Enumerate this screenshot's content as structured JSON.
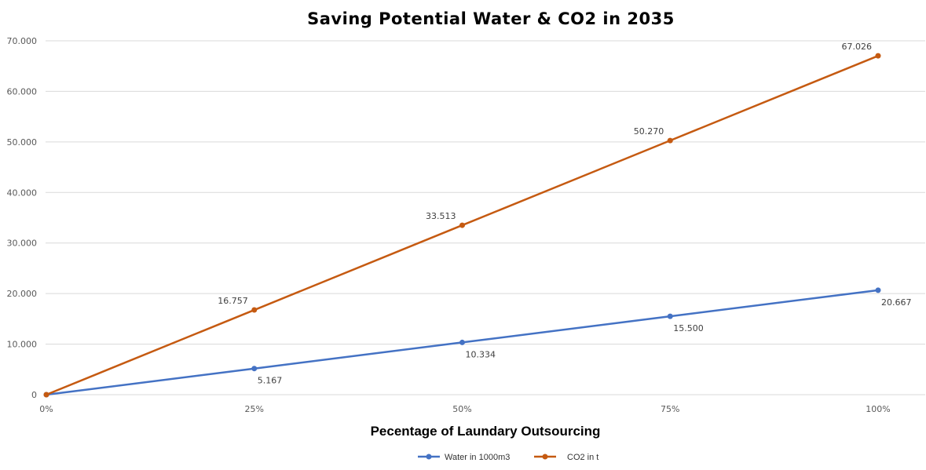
{
  "chart_data": {
    "type": "line",
    "title": "Saving Potential Water & CO2 in 2035",
    "xlabel": "Pecentage of Laundary Outsourcing",
    "ylabel": "",
    "categories": [
      "0%",
      "25%",
      "50%",
      "75%",
      "100%"
    ],
    "x": [
      0,
      25,
      50,
      75,
      100
    ],
    "ylim": [
      0,
      70000
    ],
    "yticks": [
      0,
      10000,
      20000,
      30000,
      40000,
      50000,
      60000,
      70000
    ],
    "ytick_labels": [
      "0",
      "10.000",
      "20.000",
      "30.000",
      "40.000",
      "50.000",
      "60.000",
      "70.000"
    ],
    "grid": true,
    "legend_position": "bottom",
    "series": [
      {
        "name": "Water in 1000m3",
        "color": "#4472c4",
        "values": [
          0,
          5167,
          10334,
          15500,
          20667
        ],
        "labels": [
          "",
          "5.167",
          "10.334",
          "15.500",
          "20.667"
        ],
        "label_position": "below"
      },
      {
        "name": "CO2 in t",
        "color": "#c55a11",
        "values": [
          0,
          16757,
          33513,
          50270,
          67026
        ],
        "labels": [
          "",
          "16.757",
          "33.513",
          "50.270",
          "67.026"
        ],
        "label_position": "above-left"
      }
    ]
  }
}
